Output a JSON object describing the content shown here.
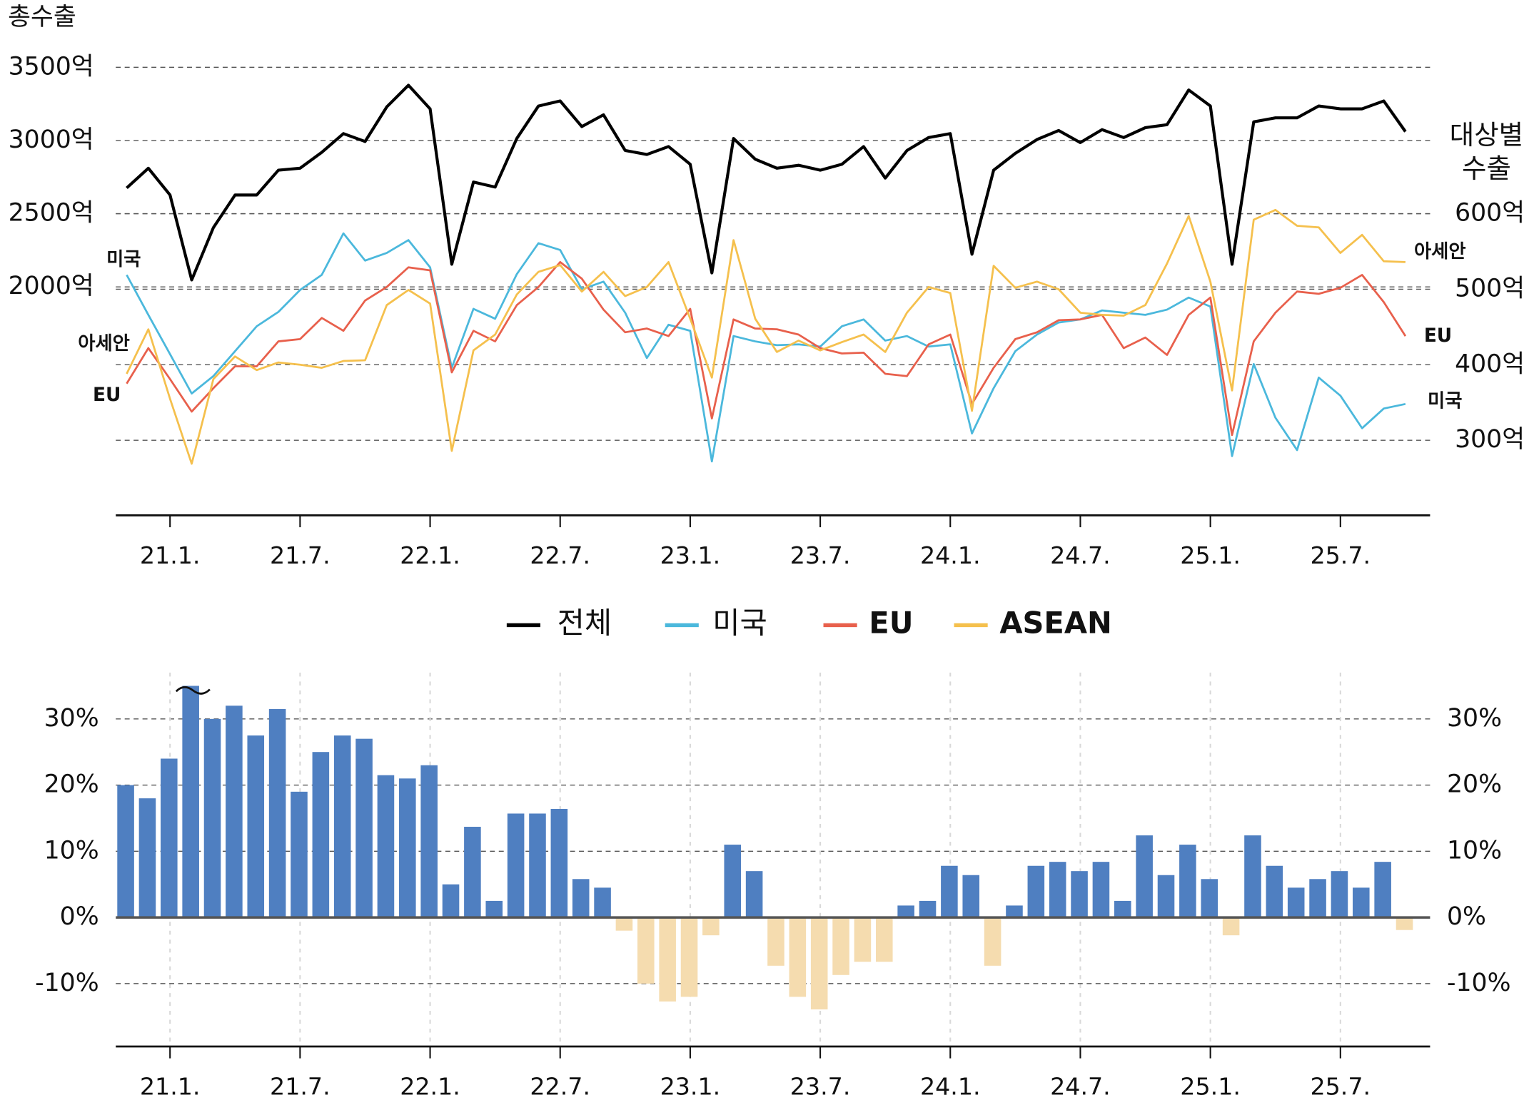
{
  "chart_data": [
    {
      "type": "line",
      "y_label": "총수출",
      "y2_label": [
        "대상별",
        "수출"
      ],
      "categories": [
        null,
        null,
        "21.1.",
        null,
        null,
        null,
        null,
        null,
        "21.7.",
        null,
        null,
        null,
        null,
        null,
        "22.1.",
        null,
        null,
        null,
        null,
        null,
        "22.7.",
        null,
        null,
        null,
        null,
        null,
        "23.1.",
        null,
        null,
        null,
        null,
        null,
        "23.7.",
        null,
        null,
        null,
        null,
        null,
        "24.1.",
        null,
        null,
        null,
        null,
        null,
        "24.7.",
        null,
        null,
        null,
        null,
        null,
        "25.1.",
        null,
        null,
        null,
        null,
        null,
        "25.7.",
        null,
        null,
        null
      ],
      "ylim": [
        400,
        3800
      ],
      "yticks": [
        {
          "value": 2000,
          "label": "2000억"
        },
        {
          "value": 2500,
          "label": "2500억"
        },
        {
          "value": 3000,
          "label": "3000억"
        },
        {
          "value": 3500,
          "label": "3500억"
        }
      ],
      "y2lim": [
        193,
        852
      ],
      "y2ticks": [
        {
          "value": 300,
          "label": "300억"
        },
        {
          "value": 400,
          "label": "400억"
        },
        {
          "value": 500,
          "label": "500억"
        },
        {
          "value": 600,
          "label": "600억"
        }
      ],
      "grid": true,
      "legend": "bottom",
      "series": [
        {
          "name": "전체",
          "color": "#000000",
          "values": [
            2676,
            2811,
            2628,
            2047,
            2405,
            2628,
            2628,
            2797,
            2811,
            2919,
            3047,
            2993,
            3230,
            3378,
            3216,
            2155,
            2716,
            2682,
            3014,
            3236,
            3270,
            3095,
            3176,
            2932,
            2905,
            2959,
            2838,
            2095,
            3014,
            2872,
            2811,
            2831,
            2797,
            2838,
            2959,
            2743,
            2932,
            3020,
            3047,
            2223,
            2797,
            2912,
            3007,
            3068,
            2986,
            3074,
            3020,
            3088,
            3108,
            3345,
            3236,
            2155,
            3128,
            3155,
            3155,
            3236,
            3216,
            3216,
            3270,
            3061
          ]
        },
        {
          "name": "미국",
          "color": "#4bb8dc",
          "axis": "y2",
          "values": [
            519,
            466,
            414,
            362,
            385,
            418,
            451,
            470,
            499,
            519,
            574,
            538,
            548,
            565,
            529,
            396,
            474,
            461,
            520,
            561,
            552,
            500,
            510,
            469,
            409,
            453,
            445,
            272,
            438,
            431,
            426,
            427,
            424,
            451,
            460,
            432,
            438,
            424,
            427,
            309,
            369,
            418,
            440,
            456,
            460,
            472,
            469,
            466,
            473,
            489,
            477,
            279,
            401,
            330,
            287,
            383,
            359,
            316,
            342,
            348
          ]
        },
        {
          "name": "EU",
          "color": "#e8604c",
          "axis": "y2",
          "values": [
            375,
            422,
            381,
            338,
            369,
            398,
            398,
            431,
            434,
            462,
            445,
            485,
            503,
            529,
            525,
            390,
            445,
            431,
            479,
            503,
            536,
            514,
            473,
            443,
            448,
            438,
            474,
            329,
            460,
            448,
            447,
            440,
            422,
            415,
            416,
            388,
            385,
            427,
            440,
            348,
            396,
            434,
            443,
            459,
            460,
            466,
            422,
            436,
            413,
            466,
            489,
            307,
            431,
            469,
            497,
            494,
            502,
            519,
            483,
            438
          ]
        },
        {
          "name": "ASEAN",
          "color": "#f5c04d",
          "axis": "y2",
          "values": [
            388,
            447,
            355,
            269,
            381,
            411,
            393,
            403,
            400,
            396,
            405,
            406,
            479,
            499,
            481,
            286,
            419,
            440,
            493,
            523,
            532,
            497,
            523,
            491,
            503,
            536,
            461,
            383,
            565,
            461,
            417,
            432,
            419,
            430,
            440,
            417,
            469,
            503,
            495,
            339,
            531,
            502,
            510,
            500,
            469,
            466,
            465,
            479,
            534,
            597,
            510,
            366,
            592,
            605,
            584,
            582,
            548,
            572,
            537,
            536
          ]
        }
      ],
      "annotations": [
        {
          "text": "미국"
        },
        {
          "text": "아세안"
        },
        {
          "text": "EU"
        },
        {
          "text": "아세안"
        },
        {
          "text": "EU"
        },
        {
          "text": "미국"
        }
      ]
    },
    {
      "type": "bar",
      "categories": [
        null,
        null,
        "21.1.",
        null,
        null,
        null,
        null,
        null,
        "21.7.",
        null,
        null,
        null,
        null,
        null,
        "22.1.",
        null,
        null,
        null,
        null,
        null,
        "22.7.",
        null,
        null,
        null,
        null,
        null,
        "23.1.",
        null,
        null,
        null,
        null,
        null,
        "23.7.",
        null,
        null,
        null,
        null,
        null,
        "24.1.",
        null,
        null,
        null,
        null,
        null,
        "24.7.",
        null,
        null,
        null,
        null,
        null,
        "25.1.",
        null,
        null,
        null,
        null,
        null,
        "25.7.",
        null,
        null,
        null
      ],
      "values": [
        20,
        18,
        24,
        35,
        30,
        32,
        27.5,
        31.5,
        19,
        25,
        27.5,
        27,
        21.5,
        21,
        23,
        5,
        13.7,
        2.5,
        15.7,
        15.7,
        16.4,
        5.8,
        4.5,
        -2,
        -10,
        -12.7,
        -12,
        -2.7,
        11,
        7,
        -7.3,
        -12,
        -13.9,
        -8.7,
        -6.7,
        -6.7,
        1.8,
        2.5,
        7.8,
        6.4,
        -7.3,
        1.8,
        7.8,
        8.4,
        7,
        8.4,
        2.5,
        12.4,
        6.4,
        11,
        5.8,
        -2.7,
        12.4,
        7.8,
        4.5,
        5.8,
        7,
        4.5,
        8.4,
        -1.9
      ],
      "color": "#4f7fc1",
      "negative_color": "#f5dcaf",
      "ylim": [
        -19.5,
        37
      ],
      "yticks": [
        {
          "value": -10,
          "label": "-10%"
        },
        {
          "value": 0,
          "label": "0%"
        },
        {
          "value": 10,
          "label": "10%"
        },
        {
          "value": 20,
          "label": "20%"
        },
        {
          "value": 30,
          "label": "30%"
        }
      ],
      "grid": true,
      "x_grid": true
    }
  ]
}
